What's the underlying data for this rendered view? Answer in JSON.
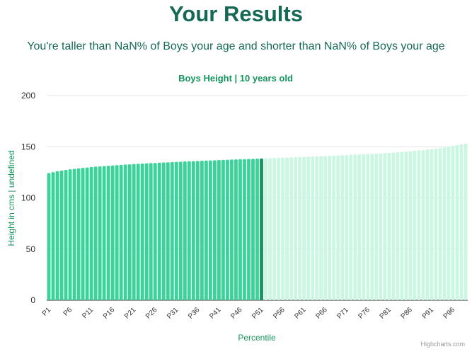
{
  "header": {
    "title": "Your Results",
    "subtitle": "You're taller than NaN% of Boys your age and shorter than NaN% of Boys your age"
  },
  "chart_data": {
    "type": "bar",
    "title": "Boys Height | 10 years old",
    "xlabel": "Percentile",
    "ylabel": "Height in cms | undefined",
    "ylim": [
      0,
      200
    ],
    "yticks": [
      0,
      50,
      100,
      150,
      200
    ],
    "grid": true,
    "categories": [
      "P1",
      "P2",
      "P3",
      "P4",
      "P5",
      "P6",
      "P7",
      "P8",
      "P9",
      "P10",
      "P11",
      "P12",
      "P13",
      "P14",
      "P15",
      "P16",
      "P17",
      "P18",
      "P19",
      "P20",
      "P21",
      "P22",
      "P23",
      "P24",
      "P25",
      "P26",
      "P27",
      "P28",
      "P29",
      "P30",
      "P31",
      "P32",
      "P33",
      "P34",
      "P35",
      "P36",
      "P37",
      "P38",
      "P39",
      "P40",
      "P41",
      "P42",
      "P43",
      "P44",
      "P45",
      "P46",
      "P47",
      "P48",
      "P49",
      "P50",
      "P51",
      "P52",
      "P53",
      "P54",
      "P55",
      "P56",
      "P57",
      "P58",
      "P59",
      "P60",
      "P61",
      "P62",
      "P63",
      "P64",
      "P65",
      "P66",
      "P67",
      "P68",
      "P69",
      "P70",
      "P71",
      "P72",
      "P73",
      "P74",
      "P75",
      "P76",
      "P77",
      "P78",
      "P79",
      "P80",
      "P81",
      "P82",
      "P83",
      "P84",
      "P85",
      "P86",
      "P87",
      "P88",
      "P89",
      "P90",
      "P91",
      "P92",
      "P93",
      "P94",
      "P95",
      "P96",
      "P97",
      "P98",
      "P99"
    ],
    "tick_labels": [
      "P1",
      "P6",
      "P11",
      "P16",
      "P21",
      "P26",
      "P31",
      "P36",
      "P41",
      "P46",
      "P51",
      "P56",
      "P61",
      "P66",
      "P71",
      "P76",
      "P81",
      "P86",
      "P91",
      "P96"
    ],
    "values": [
      124.3,
      125.2,
      126.0,
      126.7,
      127.3,
      127.9,
      128.4,
      128.9,
      129.3,
      129.7,
      130.1,
      130.5,
      130.8,
      131.1,
      131.4,
      131.7,
      132.0,
      132.3,
      132.6,
      132.8,
      133.1,
      133.3,
      133.6,
      133.8,
      134.0,
      134.2,
      134.4,
      134.6,
      134.8,
      135.0,
      135.2,
      135.4,
      135.6,
      135.8,
      135.9,
      136.1,
      136.3,
      136.5,
      136.6,
      136.8,
      137.0,
      137.1,
      137.3,
      137.5,
      137.6,
      137.8,
      137.9,
      138.1,
      138.2,
      138.4,
      138.5,
      138.7,
      138.8,
      139.0,
      139.2,
      139.3,
      139.5,
      139.6,
      139.8,
      139.9,
      140.1,
      140.3,
      140.4,
      140.6,
      140.8,
      141.0,
      141.1,
      141.3,
      141.5,
      141.7,
      141.9,
      142.1,
      142.3,
      142.5,
      142.7,
      142.9,
      143.1,
      143.3,
      143.6,
      143.8,
      144.1,
      144.4,
      144.7,
      145.0,
      145.3,
      145.6,
      146.0,
      146.4,
      146.8,
      147.2,
      147.7,
      148.2,
      148.8,
      149.4,
      150.1,
      150.8,
      151.6,
      152.5,
      153.0
    ],
    "highlight_index": 51,
    "colors": {
      "past": "#3ad39a",
      "highlight": "#14955c",
      "future": "#cbf7e2",
      "axis_label": "#14955c",
      "title": "#14955c",
      "grid": "#e6e6e6"
    }
  },
  "credits": "Highcharts.com"
}
